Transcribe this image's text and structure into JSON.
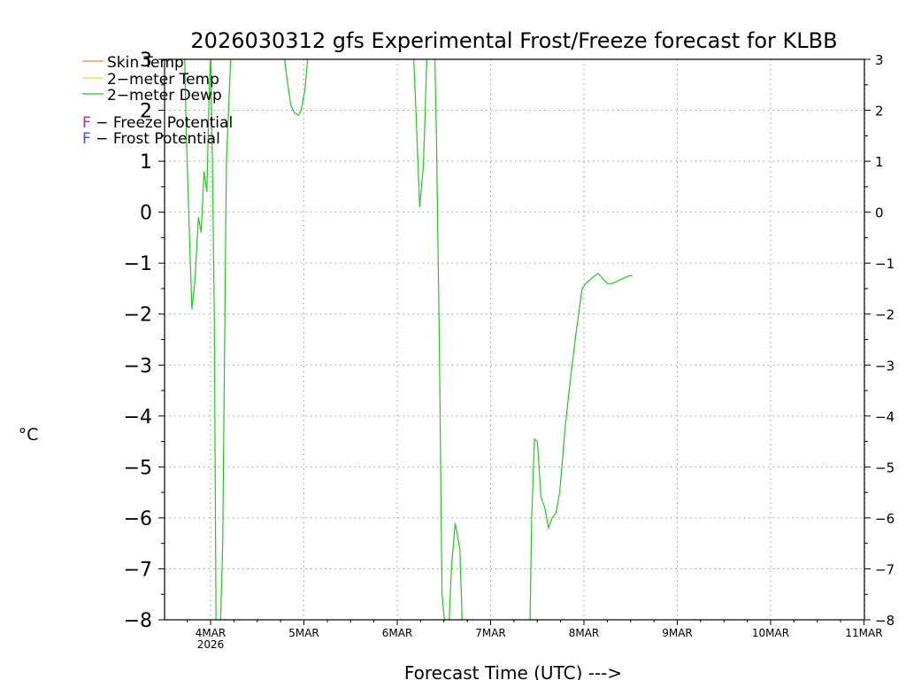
{
  "chart_data": {
    "type": "line",
    "title": "2026030312 gfs Experimental Frost/Freeze forecast for KLBB",
    "xlabel": "Forecast Time (UTC) --->",
    "ylabel": "°C",
    "ylim": [
      -8,
      3
    ],
    "xlim": [
      -0.5,
      7
    ],
    "y_ticks": [
      3,
      2,
      1,
      0,
      -1,
      -2,
      -3,
      -4,
      -5,
      -6,
      -7,
      -8
    ],
    "y_tick_labels": [
      "3",
      "2",
      "1",
      "0",
      "−1",
      "−2",
      "−3",
      "−4",
      "−5",
      "−6",
      "−7",
      "−8"
    ],
    "x_ticks": [
      0,
      1,
      2,
      3,
      4,
      5,
      6,
      7
    ],
    "x_tick_labels": [
      "4MAR",
      "5MAR",
      "6MAR",
      "7MAR",
      "8MAR",
      "9MAR",
      "10MAR",
      "11MAR"
    ],
    "x_year_label": "2026",
    "grid": true,
    "legend": {
      "placement": "top-left",
      "series": [
        {
          "name": "Skin Temp",
          "color": "#f08c2c"
        },
        {
          "name": "2−meter Temp",
          "color": "#e8d820"
        },
        {
          "name": "2−meter Dewp",
          "color": "#22c81e"
        }
      ],
      "markers": [
        {
          "letter": "F",
          "label": " − Freeze Potential",
          "color": "#c0208c"
        },
        {
          "letter": "F",
          "label": " − Frost Potential",
          "color": "#3c50f0"
        }
      ]
    },
    "series": [
      {
        "name": "2−meter Dewp",
        "color": "#22c81e",
        "x": [
          -0.28,
          -0.26,
          -0.22,
          -0.2,
          -0.17,
          -0.13,
          -0.1,
          -0.07,
          -0.04,
          -0.02,
          0.0,
          0.02,
          0.04,
          0.06,
          0.1,
          0.13,
          0.17,
          0.22,
          0.26,
          0.27,
          null,
          0.78,
          0.82,
          0.86,
          0.9,
          0.94,
          0.97,
          1.01,
          1.05,
          1.08,
          null,
          2.17,
          2.2,
          2.24,
          2.26,
          2.28,
          2.3,
          2.32,
          2.4,
          2.42,
          2.45,
          2.48,
          2.52,
          2.55,
          2.58,
          2.62,
          2.67,
          2.7,
          2.73,
          2.77,
          null,
          3.42,
          3.44,
          3.47,
          3.5,
          3.54,
          3.58,
          3.62,
          3.66,
          3.7,
          3.74,
          3.8,
          3.86,
          3.92,
          3.98,
          4.02,
          4.08,
          4.15,
          4.2,
          4.25,
          4.3,
          4.36,
          4.42,
          4.48,
          4.52
        ],
        "values": [
          3.2,
          1.5,
          -0.8,
          -1.9,
          -1.4,
          -0.1,
          -0.4,
          0.8,
          0.4,
          2.0,
          3.2,
          1.0,
          -2.0,
          -8.5,
          -8.5,
          -6.5,
          1.0,
          3.2,
          3.5,
          3.5,
          null,
          3.2,
          2.6,
          2.1,
          1.95,
          1.9,
          2.0,
          2.4,
          3.2,
          3.5,
          null,
          3.3,
          2.0,
          0.1,
          0.5,
          0.9,
          2.0,
          3.3,
          3.3,
          1.5,
          -2.5,
          -7.5,
          -8.3,
          -8.3,
          -7.0,
          -6.1,
          -6.6,
          -8.3,
          -8.3,
          -8.3,
          null,
          -8.3,
          -6.0,
          -4.45,
          -4.5,
          -5.6,
          -5.8,
          -6.2,
          -6.0,
          -5.9,
          -5.5,
          -4.2,
          -3.2,
          -2.3,
          -1.5,
          -1.4,
          -1.3,
          -1.2,
          -1.3,
          -1.4,
          -1.4,
          -1.35,
          -1.3,
          -1.25,
          -1.25
        ]
      }
    ]
  }
}
